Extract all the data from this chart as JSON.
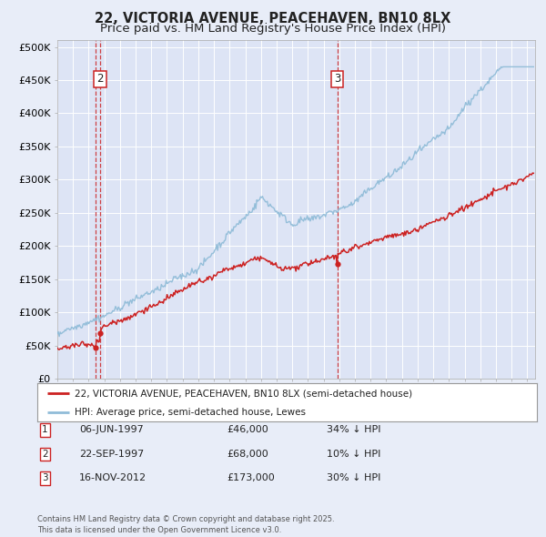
{
  "title": "22, VICTORIA AVENUE, PEACEHAVEN, BN10 8LX",
  "subtitle": "Price paid vs. HM Land Registry's House Price Index (HPI)",
  "title_fontsize": 10.5,
  "subtitle_fontsize": 9.5,
  "background_color": "#e8edf8",
  "plot_bg_color": "#dde4f5",
  "grid_color": "#ffffff",
  "hpi_color": "#90bcd8",
  "price_color": "#cc2222",
  "vline_color": "#cc2222",
  "yticks": [
    0,
    50000,
    100000,
    150000,
    200000,
    250000,
    300000,
    350000,
    400000,
    450000,
    500000
  ],
  "ytick_labels": [
    "£0",
    "£50K",
    "£100K",
    "£150K",
    "£200K",
    "£250K",
    "£300K",
    "£350K",
    "£400K",
    "£450K",
    "£500K"
  ],
  "xmin": 1995.0,
  "xmax": 2025.5,
  "ymin": 0,
  "ymax": 510000,
  "sale_points": [
    {
      "date_num": 1997.44,
      "price": 46000,
      "label": "1",
      "show_vline": true,
      "show_box": false
    },
    {
      "date_num": 1997.73,
      "price": 68000,
      "label": "2",
      "show_vline": true,
      "show_box": true
    },
    {
      "date_num": 2012.88,
      "price": 173000,
      "label": "3",
      "show_vline": true,
      "show_box": true
    }
  ],
  "legend_label_price": "22, VICTORIA AVENUE, PEACEHAVEN, BN10 8LX (semi-detached house)",
  "legend_label_hpi": "HPI: Average price, semi-detached house, Lewes",
  "table_rows": [
    {
      "num": "1",
      "date": "06-JUN-1997",
      "price": "£46,000",
      "note": "34% ↓ HPI"
    },
    {
      "num": "2",
      "date": "22-SEP-1997",
      "price": "£68,000",
      "note": "10% ↓ HPI"
    },
    {
      "num": "3",
      "date": "16-NOV-2012",
      "price": "£173,000",
      "note": "30% ↓ HPI"
    }
  ],
  "footer": "Contains HM Land Registry data © Crown copyright and database right 2025.\nThis data is licensed under the Open Government Licence v3.0."
}
